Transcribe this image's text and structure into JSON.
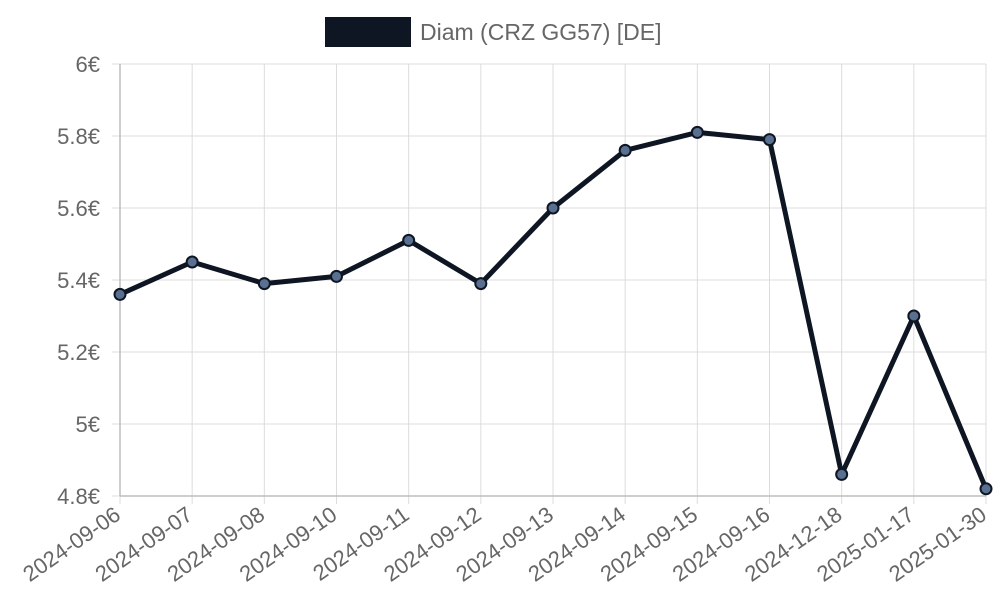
{
  "chart_data": {
    "type": "line",
    "title": "",
    "xlabel": "",
    "ylabel": "",
    "categories": [
      "2024-09-06",
      "2024-09-07",
      "2024-09-08",
      "2024-09-10",
      "2024-09-11",
      "2024-09-12",
      "2024-09-13",
      "2024-09-14",
      "2024-09-15",
      "2024-09-16",
      "2024-12-18",
      "2025-01-17",
      "2025-01-30"
    ],
    "series": [
      {
        "name": "Diam (CRZ GG57) [DE]",
        "values": [
          5.36,
          5.45,
          5.39,
          5.41,
          5.51,
          5.39,
          5.6,
          5.76,
          5.81,
          5.79,
          4.86,
          5.3,
          4.82
        ],
        "color": "#0f1623",
        "point_fill": "#5a7090"
      }
    ],
    "ylim": [
      4.8,
      6.0
    ],
    "yticks": [
      4.8,
      5.0,
      5.2,
      5.4,
      5.6,
      5.8,
      6.0
    ],
    "ytick_labels": [
      "4.8€",
      "5€",
      "5.2€",
      "5.4€",
      "5.6€",
      "5.8€",
      "6€"
    ],
    "grid": true,
    "legend_position": "top-center"
  }
}
